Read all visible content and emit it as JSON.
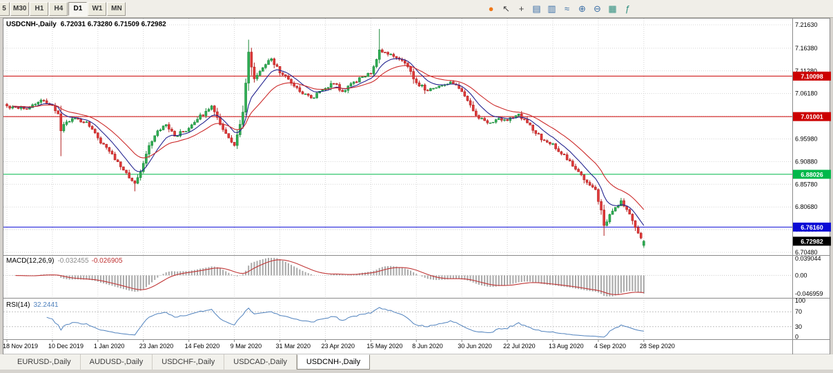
{
  "toolbar": {
    "timeframes": [
      {
        "label": "5",
        "active": false
      },
      {
        "label": "M30",
        "active": false
      },
      {
        "label": "H1",
        "active": false
      },
      {
        "label": "H4",
        "active": false
      },
      {
        "label": "D1",
        "active": true
      },
      {
        "label": "W1",
        "active": false
      },
      {
        "label": "MN",
        "active": false
      }
    ],
    "icons": [
      {
        "name": "new-order-icon",
        "glyph": "●",
        "color": "#f07818"
      },
      {
        "name": "cursor-icon",
        "glyph": "↖",
        "color": "#444444"
      },
      {
        "name": "crosshair-icon",
        "glyph": "+",
        "color": "#444444"
      },
      {
        "name": "bar-chart-icon",
        "glyph": "▤",
        "color": "#3a6ea5"
      },
      {
        "name": "candlestick-chart-icon",
        "glyph": "▥",
        "color": "#3a6ea5"
      },
      {
        "name": "line-chart-icon",
        "glyph": "≈",
        "color": "#3a6ea5"
      },
      {
        "name": "zoom-in-icon",
        "glyph": "⊕",
        "color": "#3a6ea5"
      },
      {
        "name": "zoom-out-icon",
        "glyph": "⊖",
        "color": "#3a6ea5"
      },
      {
        "name": "tile-windows-icon",
        "glyph": "▦",
        "color": "#2f8f7f"
      },
      {
        "name": "indicators-icon",
        "glyph": "ƒ",
        "color": "#2f8f7f"
      }
    ]
  },
  "chart": {
    "symbol_title": "USDCNH-,Daily",
    "ohlc_text": "6.72031 6.73280 6.71509 6.72982",
    "price_axis_labels": [
      "7.21630",
      "7.16380",
      "7.11280",
      "7.06180",
      "7.01080",
      "6.95980",
      "6.90880",
      "6.85780",
      "6.80680",
      "6.75580",
      "6.70480"
    ],
    "date_labels": [
      "18 Nov 2019",
      "10 Dec 2019",
      "1 Jan 2020",
      "23 Jan 2020",
      "14 Feb 2020",
      "9 Mar 2020",
      "31 Mar 2020",
      "23 Apr 2020",
      "15 May 2020",
      "8 Jun 2020",
      "30 Jun 2020",
      "22 Jul 2020",
      "13 Aug 2020",
      "4 Sep 2020",
      "28 Sep 2020"
    ],
    "levels": [
      {
        "label": "7.10098",
        "price": 7.10098,
        "color": "#cc0000"
      },
      {
        "label": "7.01001",
        "price": 7.01001,
        "color": "#cc0000"
      },
      {
        "label": "6.88026",
        "price": 6.88026,
        "color": "#00b84a"
      },
      {
        "label": "6.76160",
        "price": 6.7616,
        "color": "#0b0bd6"
      }
    ],
    "current_price": {
      "label": "6.72982",
      "price": 6.72982,
      "color": "#000000"
    },
    "colors": {
      "background": "#ffffff",
      "grid": "#d4d4d4",
      "frame": "#8a8a8a",
      "bull_fill": "#2fae54",
      "bull_stroke": "#1d8a3c",
      "bear_fill": "#e03a3a",
      "bear_stroke": "#b32222",
      "ma_fast": "#23238f",
      "ma_slow": "#cc2a2a"
    }
  },
  "macd": {
    "label": "MACD(12,26,9)",
    "value_main": "-0.032455",
    "value_signal": "-0.026905",
    "axis_labels": [
      "0.039044",
      "0.00",
      "-0.046959"
    ],
    "histogram_color": "#a8a8a8",
    "signal_color": "#c03535"
  },
  "rsi": {
    "label": "RSI(14)",
    "value": "32.2441",
    "axis_labels": [
      "100",
      "70",
      "30",
      "0"
    ],
    "line_color": "#4f81bd",
    "level_values": [
      70,
      30
    ]
  },
  "tabs": [
    {
      "label": "EURUSD-,Daily",
      "active": false
    },
    {
      "label": "AUDUSD-,Daily",
      "active": false
    },
    {
      "label": "USDCHF-,Daily",
      "active": false
    },
    {
      "label": "USDCAD-,Daily",
      "active": false
    },
    {
      "label": "USDCNH-,Daily",
      "active": true
    }
  ],
  "chart_data": {
    "type": "candlestick",
    "symbol": "USDCNH",
    "timeframe": "Daily",
    "bars": 225,
    "x_tick_every_bars": 16,
    "y_axis": {
      "min": 6.7048,
      "max": 7.2163
    },
    "anchors": [
      [
        0,
        7.034
      ],
      [
        4,
        7.028
      ],
      [
        8,
        7.03
      ],
      [
        12,
        7.047
      ],
      [
        16,
        7.035
      ],
      [
        18,
        7.016
      ],
      [
        19,
        6.978
      ],
      [
        21,
        6.998
      ],
      [
        24,
        7.006
      ],
      [
        28,
        6.998
      ],
      [
        32,
        6.962
      ],
      [
        36,
        6.932
      ],
      [
        40,
        6.897
      ],
      [
        43,
        6.872
      ],
      [
        45,
        6.86
      ],
      [
        48,
        6.905
      ],
      [
        50,
        6.945
      ],
      [
        53,
        6.978
      ],
      [
        56,
        6.992
      ],
      [
        59,
        6.966
      ],
      [
        62,
        6.976
      ],
      [
        64,
        6.984
      ],
      [
        67,
        7.004
      ],
      [
        70,
        7.022
      ],
      [
        72,
        7.034
      ],
      [
        74,
        7.008
      ],
      [
        77,
        6.972
      ],
      [
        80,
        6.945
      ],
      [
        83,
        7.02
      ],
      [
        85,
        7.155
      ],
      [
        87,
        7.095
      ],
      [
        90,
        7.12
      ],
      [
        93,
        7.14
      ],
      [
        96,
        7.108
      ],
      [
        99,
        7.094
      ],
      [
        103,
        7.066
      ],
      [
        107,
        7.052
      ],
      [
        111,
        7.07
      ],
      [
        115,
        7.084
      ],
      [
        118,
        7.066
      ],
      [
        122,
        7.088
      ],
      [
        126,
        7.1
      ],
      [
        128,
        7.106
      ],
      [
        131,
        7.16
      ],
      [
        134,
        7.15
      ],
      [
        137,
        7.142
      ],
      [
        140,
        7.13
      ],
      [
        144,
        7.086
      ],
      [
        148,
        7.068
      ],
      [
        152,
        7.079
      ],
      [
        156,
        7.088
      ],
      [
        160,
        7.066
      ],
      [
        163,
        7.036
      ],
      [
        166,
        7.006
      ],
      [
        169,
        6.996
      ],
      [
        173,
        7.006
      ],
      [
        176,
        7.001
      ],
      [
        180,
        7.016
      ],
      [
        183,
        6.996
      ],
      [
        186,
        6.972
      ],
      [
        189,
        6.956
      ],
      [
        192,
        6.949
      ],
      [
        195,
        6.926
      ],
      [
        198,
        6.91
      ],
      [
        201,
        6.886
      ],
      [
        204,
        6.862
      ],
      [
        207,
        6.846
      ],
      [
        209,
        6.8
      ],
      [
        210,
        6.765
      ],
      [
        212,
        6.79
      ],
      [
        214,
        6.806
      ],
      [
        216,
        6.821
      ],
      [
        218,
        6.801
      ],
      [
        220,
        6.776
      ],
      [
        222,
        6.748
      ],
      [
        223,
        6.737
      ],
      [
        224,
        6.73
      ]
    ],
    "spikes": [
      [
        19,
        "low",
        6.921
      ],
      [
        45,
        "low",
        6.842
      ],
      [
        85,
        "high",
        7.178
      ],
      [
        131,
        "high",
        7.207
      ],
      [
        210,
        "low",
        6.742
      ]
    ],
    "last_bar": {
      "open": 6.72031,
      "high": 6.7328,
      "low": 6.71509,
      "close": 6.72982
    },
    "levels": [
      7.10098,
      7.01001,
      6.88026,
      6.7616
    ],
    "moving_averages": [
      {
        "type": "ema",
        "period": 9,
        "color": "#23238f"
      },
      {
        "type": "ema",
        "period": 21,
        "color": "#cc2a2a"
      }
    ],
    "indicators": [
      {
        "name": "MACD",
        "params": [
          12,
          26,
          9
        ],
        "last_values": [
          -0.032455,
          -0.026905
        ],
        "range": [
          -0.046959,
          0.039044
        ]
      },
      {
        "name": "RSI",
        "params": [
          14
        ],
        "last_value": 32.2441,
        "range": [
          0,
          100
        ],
        "levels": [
          30,
          70
        ]
      }
    ]
  }
}
